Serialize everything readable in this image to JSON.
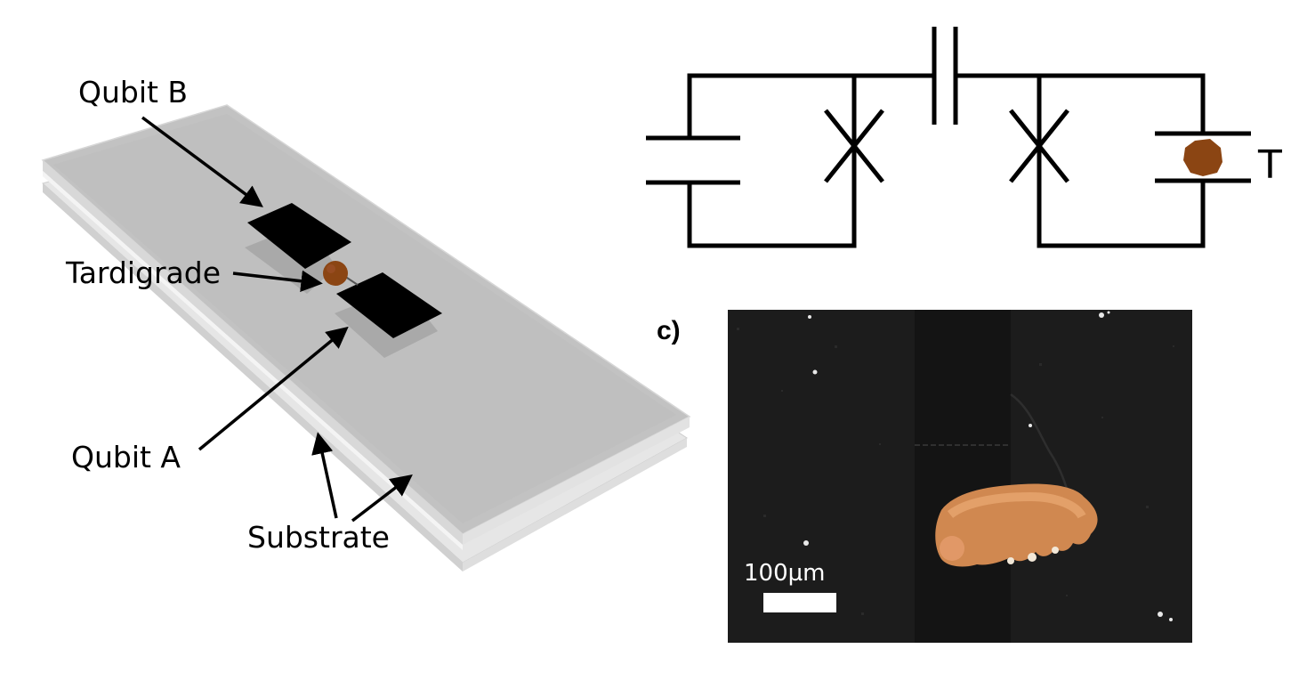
{
  "panel_a": {
    "labels": {
      "qubit_b": "Qubit B",
      "tardigrade": "Tardigrade",
      "qubit_a": "Qubit A",
      "substrate": "Substrate"
    },
    "colors": {
      "tardigrade": "#8B4513",
      "pad": "#000000",
      "substrate": "#c8c8c8"
    }
  },
  "panel_b": {
    "tardigrade_label": "T",
    "colors": {
      "wire": "#000000",
      "tardigrade": "#8B4513"
    }
  },
  "panel_c": {
    "label": "c)",
    "scale_bar_label": "100µm"
  }
}
